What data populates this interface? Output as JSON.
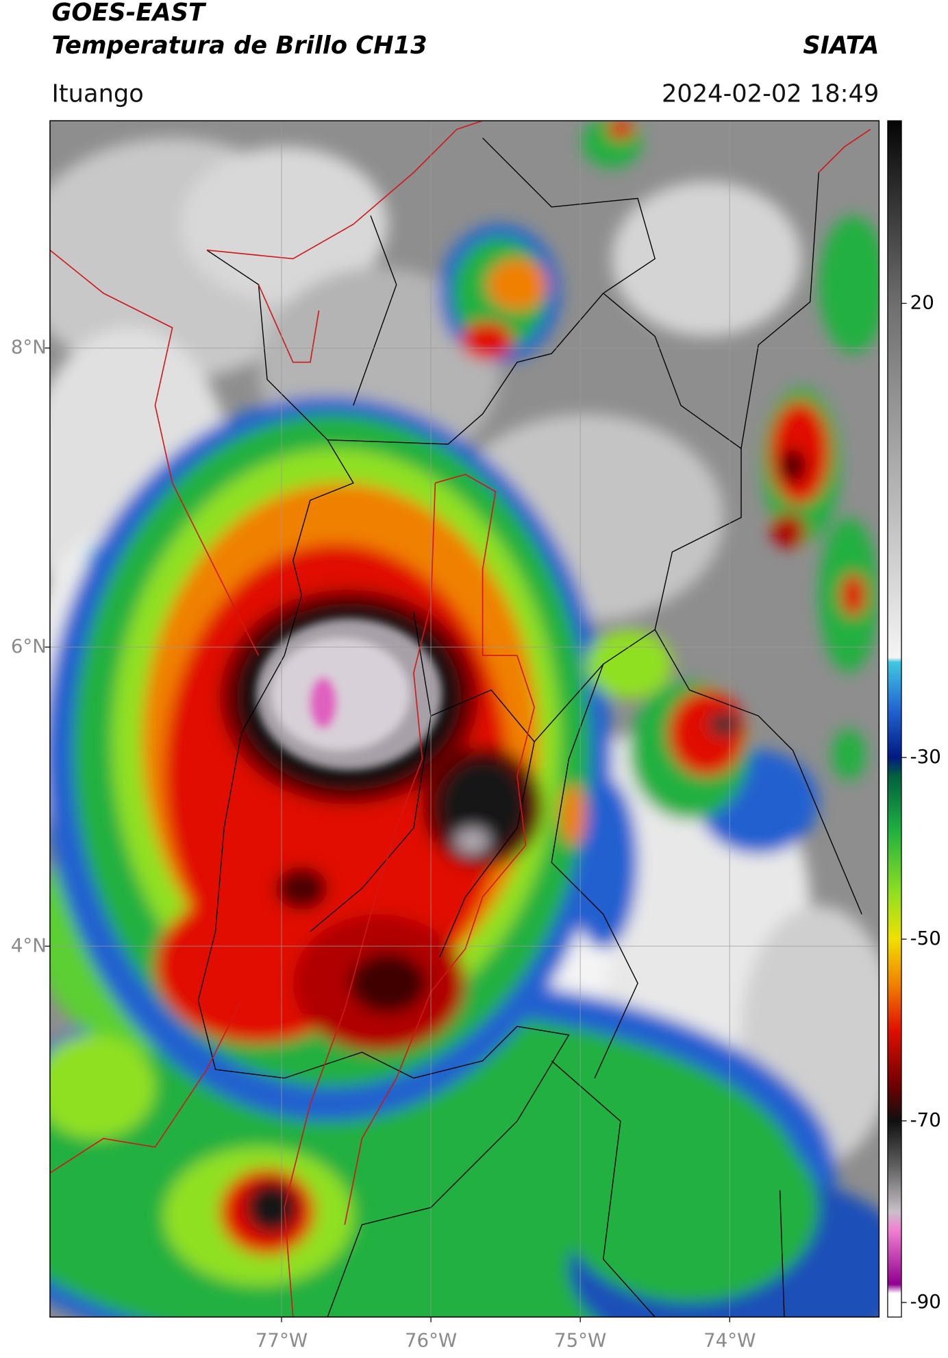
{
  "header": {
    "title": "GOES-EAST",
    "subtitle": "Temperatura de Brillo CH13",
    "brand": "SIATA",
    "location": "Ituango",
    "datetime": "2024-02-02 18:49"
  },
  "map": {
    "xlim": [
      -78.55,
      -73.0
    ],
    "ylim": [
      1.52,
      9.52
    ],
    "xticks": [
      {
        "value": -77,
        "label": "77°W"
      },
      {
        "value": -76,
        "label": "76°W"
      },
      {
        "value": -75,
        "label": "75°W"
      },
      {
        "value": -74,
        "label": "74°W"
      }
    ],
    "yticks": [
      {
        "value": 8,
        "label": "8°N"
      },
      {
        "value": 6,
        "label": "6°N"
      },
      {
        "value": 4,
        "label": "4°N"
      }
    ],
    "grid": true
  },
  "colorbar": {
    "lim": [
      -91.6,
      40.1
    ],
    "ticks": [
      20,
      -30,
      -50,
      -70,
      -90
    ],
    "colormap": [
      {
        "value": 40.1,
        "color": "#050505"
      },
      {
        "value": 20,
        "color": "#6e6e6e"
      },
      {
        "value": -19,
        "color": "#f4f4f4"
      },
      {
        "value": -19.5,
        "color": "#40c8e0"
      },
      {
        "value": -25,
        "color": "#2060d0"
      },
      {
        "value": -30,
        "color": "#001a80"
      },
      {
        "value": -32,
        "color": "#006040"
      },
      {
        "value": -38,
        "color": "#20b040"
      },
      {
        "value": -45,
        "color": "#90e020"
      },
      {
        "value": -50,
        "color": "#f0e000"
      },
      {
        "value": -55,
        "color": "#f08000"
      },
      {
        "value": -60,
        "color": "#e01000"
      },
      {
        "value": -66,
        "color": "#700000"
      },
      {
        "value": -70,
        "color": "#101010"
      },
      {
        "value": -75,
        "color": "#606060"
      },
      {
        "value": -80,
        "color": "#c8c0c8"
      },
      {
        "value": -82,
        "color": "#f080d0"
      },
      {
        "value": -88,
        "color": "#900090"
      },
      {
        "value": -89,
        "color": "#ffffff"
      },
      {
        "value": -91.6,
        "color": "#ffffff"
      }
    ]
  }
}
